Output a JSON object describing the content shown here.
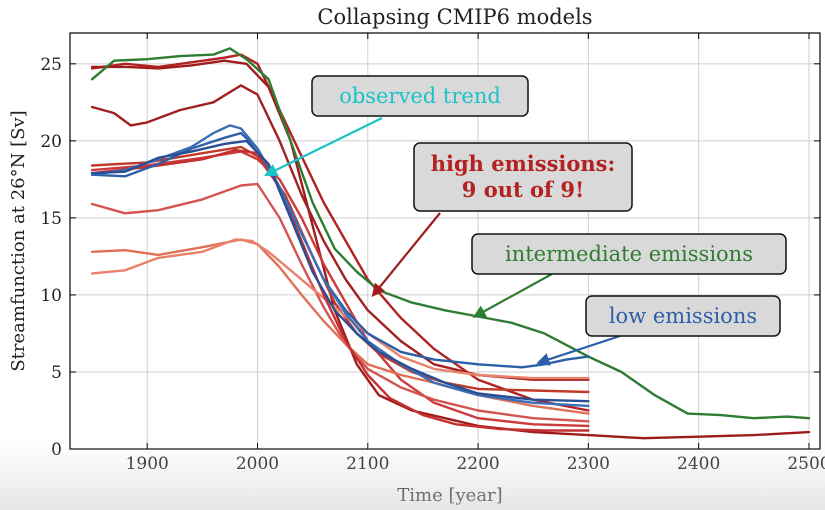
{
  "chart_data": {
    "type": "line",
    "title": "Collapsing CMIP6 models",
    "xlabel": "Time [year]",
    "ylabel": "Streamfunction at 26°N [Sv]",
    "xlim": [
      1830,
      2510
    ],
    "ylim": [
      0,
      27
    ],
    "xticks": [
      1900,
      2000,
      2100,
      2200,
      2300,
      2400,
      2500
    ],
    "yticks": [
      0,
      5,
      10,
      15,
      20,
      25
    ],
    "grid": true,
    "series": [
      {
        "scenario": "high",
        "color": "#b22222",
        "x": [
          1850,
          1880,
          1910,
          1940,
          1970,
          1985,
          2000,
          2020,
          2040,
          2060,
          2080,
          2100,
          2130,
          2160,
          2200,
          2250,
          2300
        ],
        "y": [
          24.7,
          25.0,
          24.8,
          25.1,
          25.4,
          25.6,
          25.0,
          22.0,
          19.0,
          16.0,
          13.5,
          11.0,
          8.5,
          6.5,
          4.5,
          3.2,
          2.5
        ]
      },
      {
        "scenario": "high",
        "color": "#a01c1c",
        "x": [
          1850,
          1880,
          1910,
          1940,
          1970,
          1990,
          2010,
          2030,
          2050,
          2070,
          2090,
          2110,
          2140,
          2170,
          2200,
          2250,
          2300,
          2350,
          2400,
          2450,
          2500
        ],
        "y": [
          24.8,
          24.8,
          24.7,
          24.9,
          25.2,
          25.0,
          23.5,
          20.0,
          14.5,
          9.0,
          5.5,
          3.5,
          2.5,
          2.0,
          1.5,
          1.1,
          0.9,
          0.7,
          0.8,
          0.9,
          1.1
        ]
      },
      {
        "scenario": "high",
        "color": "#a32020",
        "x": [
          1850,
          1870,
          1885,
          1900,
          1930,
          1960,
          1985,
          2000,
          2020,
          2040,
          2060,
          2080,
          2100,
          2130,
          2160,
          2200,
          2250,
          2300
        ],
        "y": [
          22.2,
          21.8,
          21.0,
          21.2,
          22.0,
          22.5,
          23.6,
          23.0,
          20.0,
          16.5,
          13.5,
          11.0,
          9.0,
          7.0,
          5.5,
          4.8,
          4.5,
          4.5
        ]
      },
      {
        "scenario": "high",
        "color": "#c0392b",
        "x": [
          1850,
          1900,
          1950,
          1985,
          2000,
          2025,
          2050,
          2070,
          2090,
          2110,
          2140,
          2170,
          2200,
          2250,
          2300
        ],
        "y": [
          18.4,
          18.6,
          19.2,
          19.6,
          19.0,
          16.5,
          12.5,
          9.5,
          7.5,
          6.2,
          5.0,
          4.3,
          3.9,
          3.8,
          3.7
        ]
      },
      {
        "scenario": "high",
        "color": "#cc3c3c",
        "x": [
          1850,
          1900,
          1950,
          1985,
          2000,
          2020,
          2040,
          2060,
          2080,
          2100,
          2130,
          2160,
          2200,
          2250,
          2300
        ],
        "y": [
          18.1,
          18.4,
          18.9,
          19.3,
          18.8,
          17.5,
          15.0,
          12.0,
          9.5,
          7.0,
          4.5,
          3.0,
          2.0,
          1.6,
          1.5
        ]
      },
      {
        "scenario": "high",
        "color": "#d35450",
        "x": [
          1850,
          1880,
          1910,
          1950,
          1985,
          2000,
          2020,
          2040,
          2060,
          2080,
          2100,
          2130,
          2160,
          2200,
          2250,
          2300
        ],
        "y": [
          15.9,
          15.3,
          15.5,
          16.2,
          17.1,
          17.2,
          15.0,
          12.0,
          9.2,
          6.8,
          5.2,
          4.0,
          3.2,
          2.5,
          2.0,
          1.8
        ]
      },
      {
        "scenario": "high",
        "color": "#e07057",
        "x": [
          1850,
          1880,
          1910,
          1950,
          1985,
          2000,
          2020,
          2040,
          2060,
          2080,
          2100,
          2130,
          2160,
          2200,
          2250,
          2300
        ],
        "y": [
          12.8,
          12.9,
          12.6,
          13.1,
          13.6,
          13.3,
          11.8,
          10.0,
          8.3,
          6.8,
          5.5,
          4.8,
          4.3,
          3.5,
          2.8,
          2.3
        ]
      },
      {
        "scenario": "high",
        "color": "#e8826a",
        "x": [
          1850,
          1880,
          1910,
          1950,
          1980,
          1995,
          2010,
          2030,
          2050,
          2070,
          2100,
          2130,
          2160,
          2200,
          2250,
          2300
        ],
        "y": [
          11.4,
          11.6,
          12.4,
          12.8,
          13.6,
          13.5,
          12.8,
          11.6,
          10.4,
          9.2,
          7.5,
          6.0,
          5.2,
          4.8,
          4.6,
          4.6
        ]
      },
      {
        "scenario": "high",
        "color": "#c43030",
        "x": [
          1850,
          1900,
          1950,
          1980,
          2000,
          2020,
          2040,
          2060,
          2080,
          2100,
          2120,
          2150,
          2180,
          2220,
          2260,
          2300
        ],
        "y": [
          17.9,
          18.3,
          18.8,
          19.4,
          19.2,
          17.0,
          13.5,
          10.0,
          7.0,
          4.8,
          3.3,
          2.2,
          1.6,
          1.3,
          1.2,
          1.2
        ]
      },
      {
        "scenario": "intermediate",
        "color": "#2e7d32",
        "x": [
          1850,
          1870,
          1900,
          1930,
          1960,
          1975,
          1990,
          2010,
          2030,
          2050,
          2070,
          2090,
          2110,
          2140,
          2170,
          2200,
          2230,
          2260,
          2300,
          2330,
          2360,
          2390,
          2420,
          2450,
          2480,
          2500
        ],
        "y": [
          24.0,
          25.2,
          25.3,
          25.5,
          25.6,
          26.0,
          25.3,
          24.0,
          20.0,
          16.0,
          13.0,
          11.5,
          10.3,
          9.5,
          9.0,
          8.6,
          8.2,
          7.5,
          6.0,
          5.0,
          3.5,
          2.3,
          2.2,
          2.0,
          2.1,
          2.0
        ]
      },
      {
        "scenario": "low",
        "color": "#2d5fa8",
        "x": [
          1850,
          1880,
          1910,
          1940,
          1970,
          1985,
          2000,
          2020,
          2040,
          2060,
          2080,
          2100,
          2130,
          2160,
          2200,
          2240,
          2260,
          2280,
          2300
        ],
        "y": [
          17.8,
          17.7,
          18.5,
          19.5,
          20.2,
          20.5,
          19.5,
          17.0,
          14.0,
          11.0,
          9.0,
          7.5,
          6.3,
          5.8,
          5.5,
          5.3,
          5.5,
          5.8,
          6.0
        ]
      },
      {
        "scenario": "low",
        "color": "#3a6fb5",
        "x": [
          1850,
          1880,
          1910,
          1940,
          1960,
          1975,
          1985,
          2000,
          2020,
          2040,
          2060,
          2080,
          2100,
          2130,
          2160,
          2200,
          2250,
          2300
        ],
        "y": [
          17.8,
          18.1,
          18.8,
          19.6,
          20.5,
          21.0,
          20.8,
          19.5,
          17.0,
          14.0,
          11.0,
          8.8,
          7.0,
          5.5,
          4.3,
          3.5,
          3.0,
          2.8
        ]
      },
      {
        "scenario": "low",
        "color": "#2a4f95",
        "x": [
          1850,
          1880,
          1910,
          1940,
          1970,
          1990,
          2010,
          2030,
          2050,
          2070,
          2090,
          2110,
          2140,
          2170,
          2200,
          2250,
          2300
        ],
        "y": [
          17.9,
          18.0,
          18.9,
          19.3,
          19.8,
          20.0,
          18.5,
          15.0,
          11.5,
          9.0,
          7.5,
          6.3,
          5.2,
          4.3,
          3.6,
          3.2,
          3.1
        ]
      }
    ],
    "annotations": [
      {
        "id": "observed",
        "text": "observed trend",
        "text_color": "#19c3c8",
        "arrow_color": "#19c3c8",
        "arrow_to": [
          2008,
          17.8
        ]
      },
      {
        "id": "high",
        "text": "high emissions:\n9 out of 9!",
        "text_color": "#b22222",
        "arrow_color": "#a01c1c",
        "arrow_to": [
          2105,
          10.0
        ]
      },
      {
        "id": "intermediate",
        "text": "intermediate emissions",
        "text_color": "#2e7d32",
        "arrow_color": "#2e7d32",
        "arrow_to": [
          2197,
          8.6
        ]
      },
      {
        "id": "low",
        "text": "low emissions",
        "text_color": "#2d5fa8",
        "arrow_color": "#2d5fa8",
        "arrow_to": [
          2255,
          5.6
        ]
      }
    ]
  }
}
